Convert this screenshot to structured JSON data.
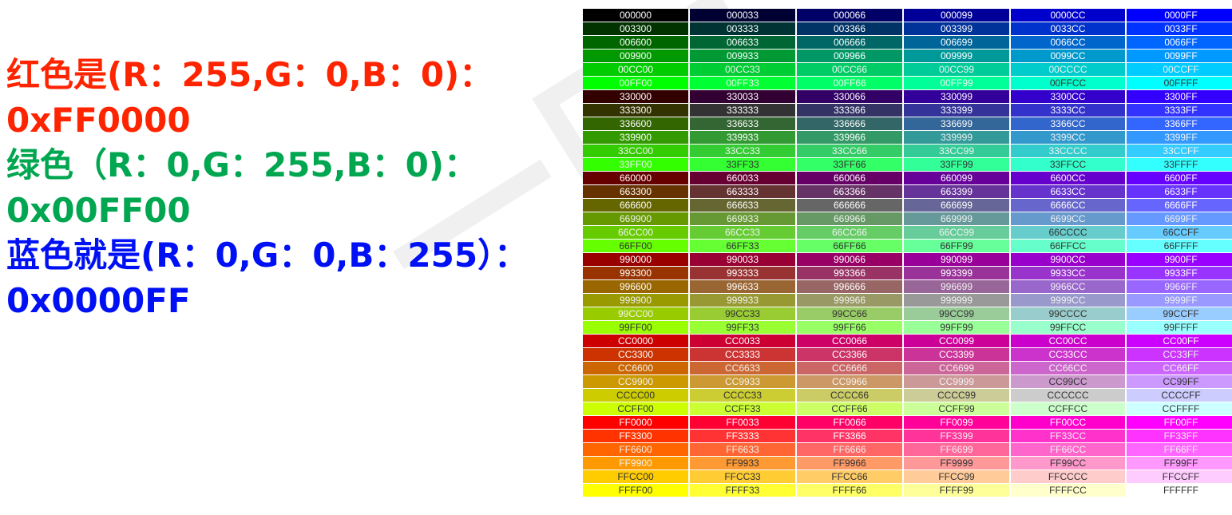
{
  "text": {
    "lines": [
      {
        "text": "红色是(R：255,G：0,B：0)：",
        "color": "red"
      },
      {
        "text": "0xFF0000",
        "color": "red"
      },
      {
        "text": "绿色（R：0,G：255,B：0)：",
        "color": "green"
      },
      {
        "text": "0x00FF00",
        "color": "green"
      },
      {
        "text": "蓝色就是(R：0,G：0,B：255）：",
        "color": "blue"
      },
      {
        "text": "0x0000FF",
        "color": "blue"
      }
    ]
  },
  "watermark": "一口L",
  "colors": {
    "red": "#ff2400",
    "green": "#00a650",
    "blue": "#0010f5"
  },
  "color_table": {
    "levels": [
      "00",
      "33",
      "66",
      "99",
      "CC",
      "FF"
    ],
    "rows": [
      [
        "000000",
        "000033",
        "000066",
        "000099",
        "0000CC",
        "0000FF"
      ],
      [
        "003300",
        "003333",
        "003366",
        "003399",
        "0033CC",
        "0033FF"
      ],
      [
        "006600",
        "006633",
        "006666",
        "006699",
        "0066CC",
        "0066FF"
      ],
      [
        "009900",
        "009933",
        "009966",
        "009999",
        "0099CC",
        "0099FF"
      ],
      [
        "00CC00",
        "00CC33",
        "00CC66",
        "00CC99",
        "00CCCC",
        "00CCFF"
      ],
      [
        "00FF00",
        "00FF33",
        "00FF66",
        "00FF99",
        "00FFCC",
        "00FFFF"
      ],
      [
        "330000",
        "330033",
        "330066",
        "330099",
        "3300CC",
        "3300FF"
      ],
      [
        "333300",
        "333333",
        "333366",
        "333399",
        "3333CC",
        "3333FF"
      ],
      [
        "336600",
        "336633",
        "336666",
        "336699",
        "3366CC",
        "3366FF"
      ],
      [
        "339900",
        "339933",
        "339966",
        "339999",
        "3399CC",
        "3399FF"
      ],
      [
        "33CC00",
        "33CC33",
        "33CC66",
        "33CC99",
        "33CCCC",
        "33CCFF"
      ],
      [
        "33FF00",
        "33FF33",
        "33FF66",
        "33FF99",
        "33FFCC",
        "33FFFF"
      ],
      [
        "660000",
        "660033",
        "660066",
        "660099",
        "6600CC",
        "6600FF"
      ],
      [
        "663300",
        "663333",
        "663366",
        "663399",
        "6633CC",
        "6633FF"
      ],
      [
        "666600",
        "666633",
        "666666",
        "666699",
        "6666CC",
        "6666FF"
      ],
      [
        "669900",
        "669933",
        "669966",
        "669999",
        "6699CC",
        "6699FF"
      ],
      [
        "66CC00",
        "66CC33",
        "66CC66",
        "66CC99",
        "66CCCC",
        "66CCFF"
      ],
      [
        "66FF00",
        "66FF33",
        "66FF66",
        "66FF99",
        "66FFCC",
        "66FFFF"
      ],
      [
        "990000",
        "990033",
        "990066",
        "990099",
        "9900CC",
        "9900FF"
      ],
      [
        "993300",
        "993333",
        "993366",
        "993399",
        "9933CC",
        "9933FF"
      ],
      [
        "996600",
        "996633",
        "996666",
        "996699",
        "9966CC",
        "9966FF"
      ],
      [
        "999900",
        "999933",
        "999966",
        "999999",
        "9999CC",
        "9999FF"
      ],
      [
        "99CC00",
        "99CC33",
        "99CC66",
        "99CC99",
        "99CCCC",
        "99CCFF"
      ],
      [
        "99FF00",
        "99FF33",
        "99FF66",
        "99FF99",
        "99FFCC",
        "99FFFF"
      ],
      [
        "CC0000",
        "CC0033",
        "CC0066",
        "CC0099",
        "CC00CC",
        "CC00FF"
      ],
      [
        "CC3300",
        "CC3333",
        "CC3366",
        "CC3399",
        "CC33CC",
        "CC33FF"
      ],
      [
        "CC6600",
        "CC6633",
        "CC6666",
        "CC6699",
        "CC66CC",
        "CC66FF"
      ],
      [
        "CC9900",
        "CC9933",
        "CC9966",
        "CC9999",
        "CC99CC",
        "CC99FF"
      ],
      [
        "CCCC00",
        "CCCC33",
        "CCCC66",
        "CCCC99",
        "CCCCCC",
        "CCCCFF"
      ],
      [
        "CCFF00",
        "CCFF33",
        "CCFF66",
        "CCFF99",
        "CCFFCC",
        "CCFFFF"
      ],
      [
        "FF0000",
        "FF0033",
        "FF0066",
        "FF0099",
        "FF00CC",
        "FF00FF"
      ],
      [
        "FF3300",
        "FF3333",
        "FF3366",
        "FF3399",
        "FF33CC",
        "FF33FF"
      ],
      [
        "FF6600",
        "FF6633",
        "FF6666",
        "FF6699",
        "FF66CC",
        "FF66FF"
      ],
      [
        "FF9900",
        "FF9933",
        "FF9966",
        "FF9999",
        "FF99CC",
        "FF99FF"
      ],
      [
        "FFCC00",
        "FFCC33",
        "FFCC66",
        "FFCC99",
        "FFCCCC",
        "FFCCFF"
      ],
      [
        "FFFF00",
        "FFFF33",
        "FFFF66",
        "FFFF99",
        "FFFFCC",
        "FFFFFF"
      ]
    ]
  }
}
